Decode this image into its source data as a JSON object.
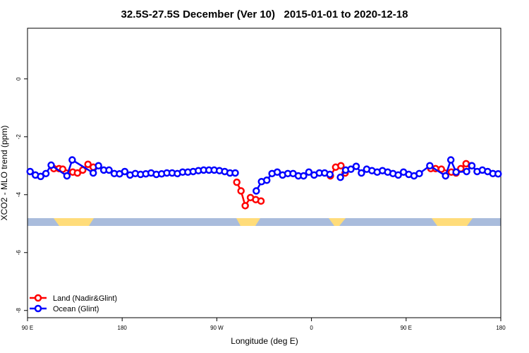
{
  "chart_data": {
    "type": "line",
    "title": "32.5S-27.5S December (Ver 10)   2015-01-01 to 2020-12-18",
    "x_label": "Longitude (deg E)",
    "y_label": "XCO2 - MLO trend (ppm)",
    "xlim": [
      90,
      540
    ],
    "xticks": [
      {
        "value": 90,
        "label": "90 E"
      },
      180,
      {
        "value": 270,
        "label": "90 W"
      },
      {
        "value": 360,
        "label": "0"
      },
      {
        "value": 450,
        "label": "90 E"
      },
      {
        "value": 540,
        "label": "180"
      }
    ],
    "ylim": [
      -8.25,
      1.75
    ],
    "yticks": [
      0,
      -2,
      -4,
      -6,
      -8
    ],
    "legend": "bottom-left",
    "series": [
      {
        "name": "Land (Nadir&Glint)",
        "color": "#ff0000",
        "x": [
          115,
          120,
          123.5,
          133,
          137.5,
          142.5,
          147.5,
          152.5,
          155,
          289,
          293,
          297,
          302,
          307,
          312,
          340,
          378,
          383,
          388,
          392,
          420,
          473.5,
          478,
          483.5,
          493,
          497.5,
          502,
          507,
          512
        ],
        "values": [
          -3.1,
          -3.1,
          -3.12,
          -3.22,
          -3.25,
          -3.15,
          -2.95,
          -3.05,
          null,
          -3.57,
          -3.87,
          -4.38,
          -4.1,
          -4.17,
          -4.22,
          null,
          -3.35,
          -3.05,
          -3.0,
          -3.25,
          null,
          -3.1,
          -3.1,
          -3.12,
          -3.22,
          -3.25,
          -3.1,
          -2.93,
          -3.0
        ]
      },
      {
        "name": "Ocean (Glint)",
        "color": "#0000ff",
        "x": [
          92.5,
          97.5,
          102.5,
          107.5,
          112.5,
          127.5,
          132.5,
          152.5,
          157.5,
          162.5,
          167.5,
          172.5,
          177.5,
          182.5,
          187.5,
          192.5,
          197.5,
          202.5,
          207.5,
          212.5,
          217.5,
          222.5,
          227.5,
          232.5,
          237.5,
          242.5,
          247.5,
          252.5,
          257.5,
          262.5,
          267.5,
          272.5,
          277.5,
          282.5,
          287.5,
          300,
          307.5,
          312.5,
          317.5,
          322.5,
          327.5,
          332.5,
          337.5,
          342.5,
          347.5,
          352.5,
          357.5,
          362.5,
          367.5,
          372.5,
          377.5,
          382.5,
          387.5,
          392.5,
          397.5,
          402.5,
          407.5,
          412.5,
          417.5,
          422.5,
          427.5,
          432.5,
          437.5,
          442.5,
          447.5,
          452.5,
          457.5,
          462.5,
          472.5,
          487.5,
          492.5,
          497.5,
          507.5,
          512.5,
          517.5,
          522.5,
          527.5,
          532.5,
          537.5
        ],
        "values": [
          -3.2,
          -3.32,
          -3.37,
          -3.27,
          -2.98,
          -3.35,
          -2.8,
          -3.25,
          -3.0,
          -3.15,
          -3.15,
          -3.27,
          -3.28,
          -3.2,
          -3.32,
          -3.27,
          -3.3,
          -3.28,
          -3.25,
          -3.3,
          -3.28,
          -3.25,
          -3.25,
          -3.27,
          -3.22,
          -3.22,
          -3.2,
          -3.17,
          -3.15,
          -3.15,
          -3.15,
          -3.17,
          -3.2,
          -3.25,
          -3.25,
          null,
          -3.87,
          -3.55,
          -3.5,
          -3.27,
          -3.22,
          -3.32,
          -3.27,
          -3.27,
          -3.35,
          -3.35,
          -3.22,
          -3.32,
          -3.25,
          -3.25,
          -3.3,
          null,
          -3.4,
          -3.15,
          -3.12,
          -3.02,
          -3.25,
          -3.12,
          -3.17,
          -3.22,
          -3.17,
          -3.22,
          -3.27,
          -3.32,
          -3.22,
          -3.3,
          -3.35,
          -3.27,
          -3.0,
          -3.35,
          -2.8,
          -3.22,
          -3.2,
          -3.0,
          -3.2,
          -3.15,
          -3.2,
          -3.27,
          -3.28
        ]
      }
    ]
  }
}
